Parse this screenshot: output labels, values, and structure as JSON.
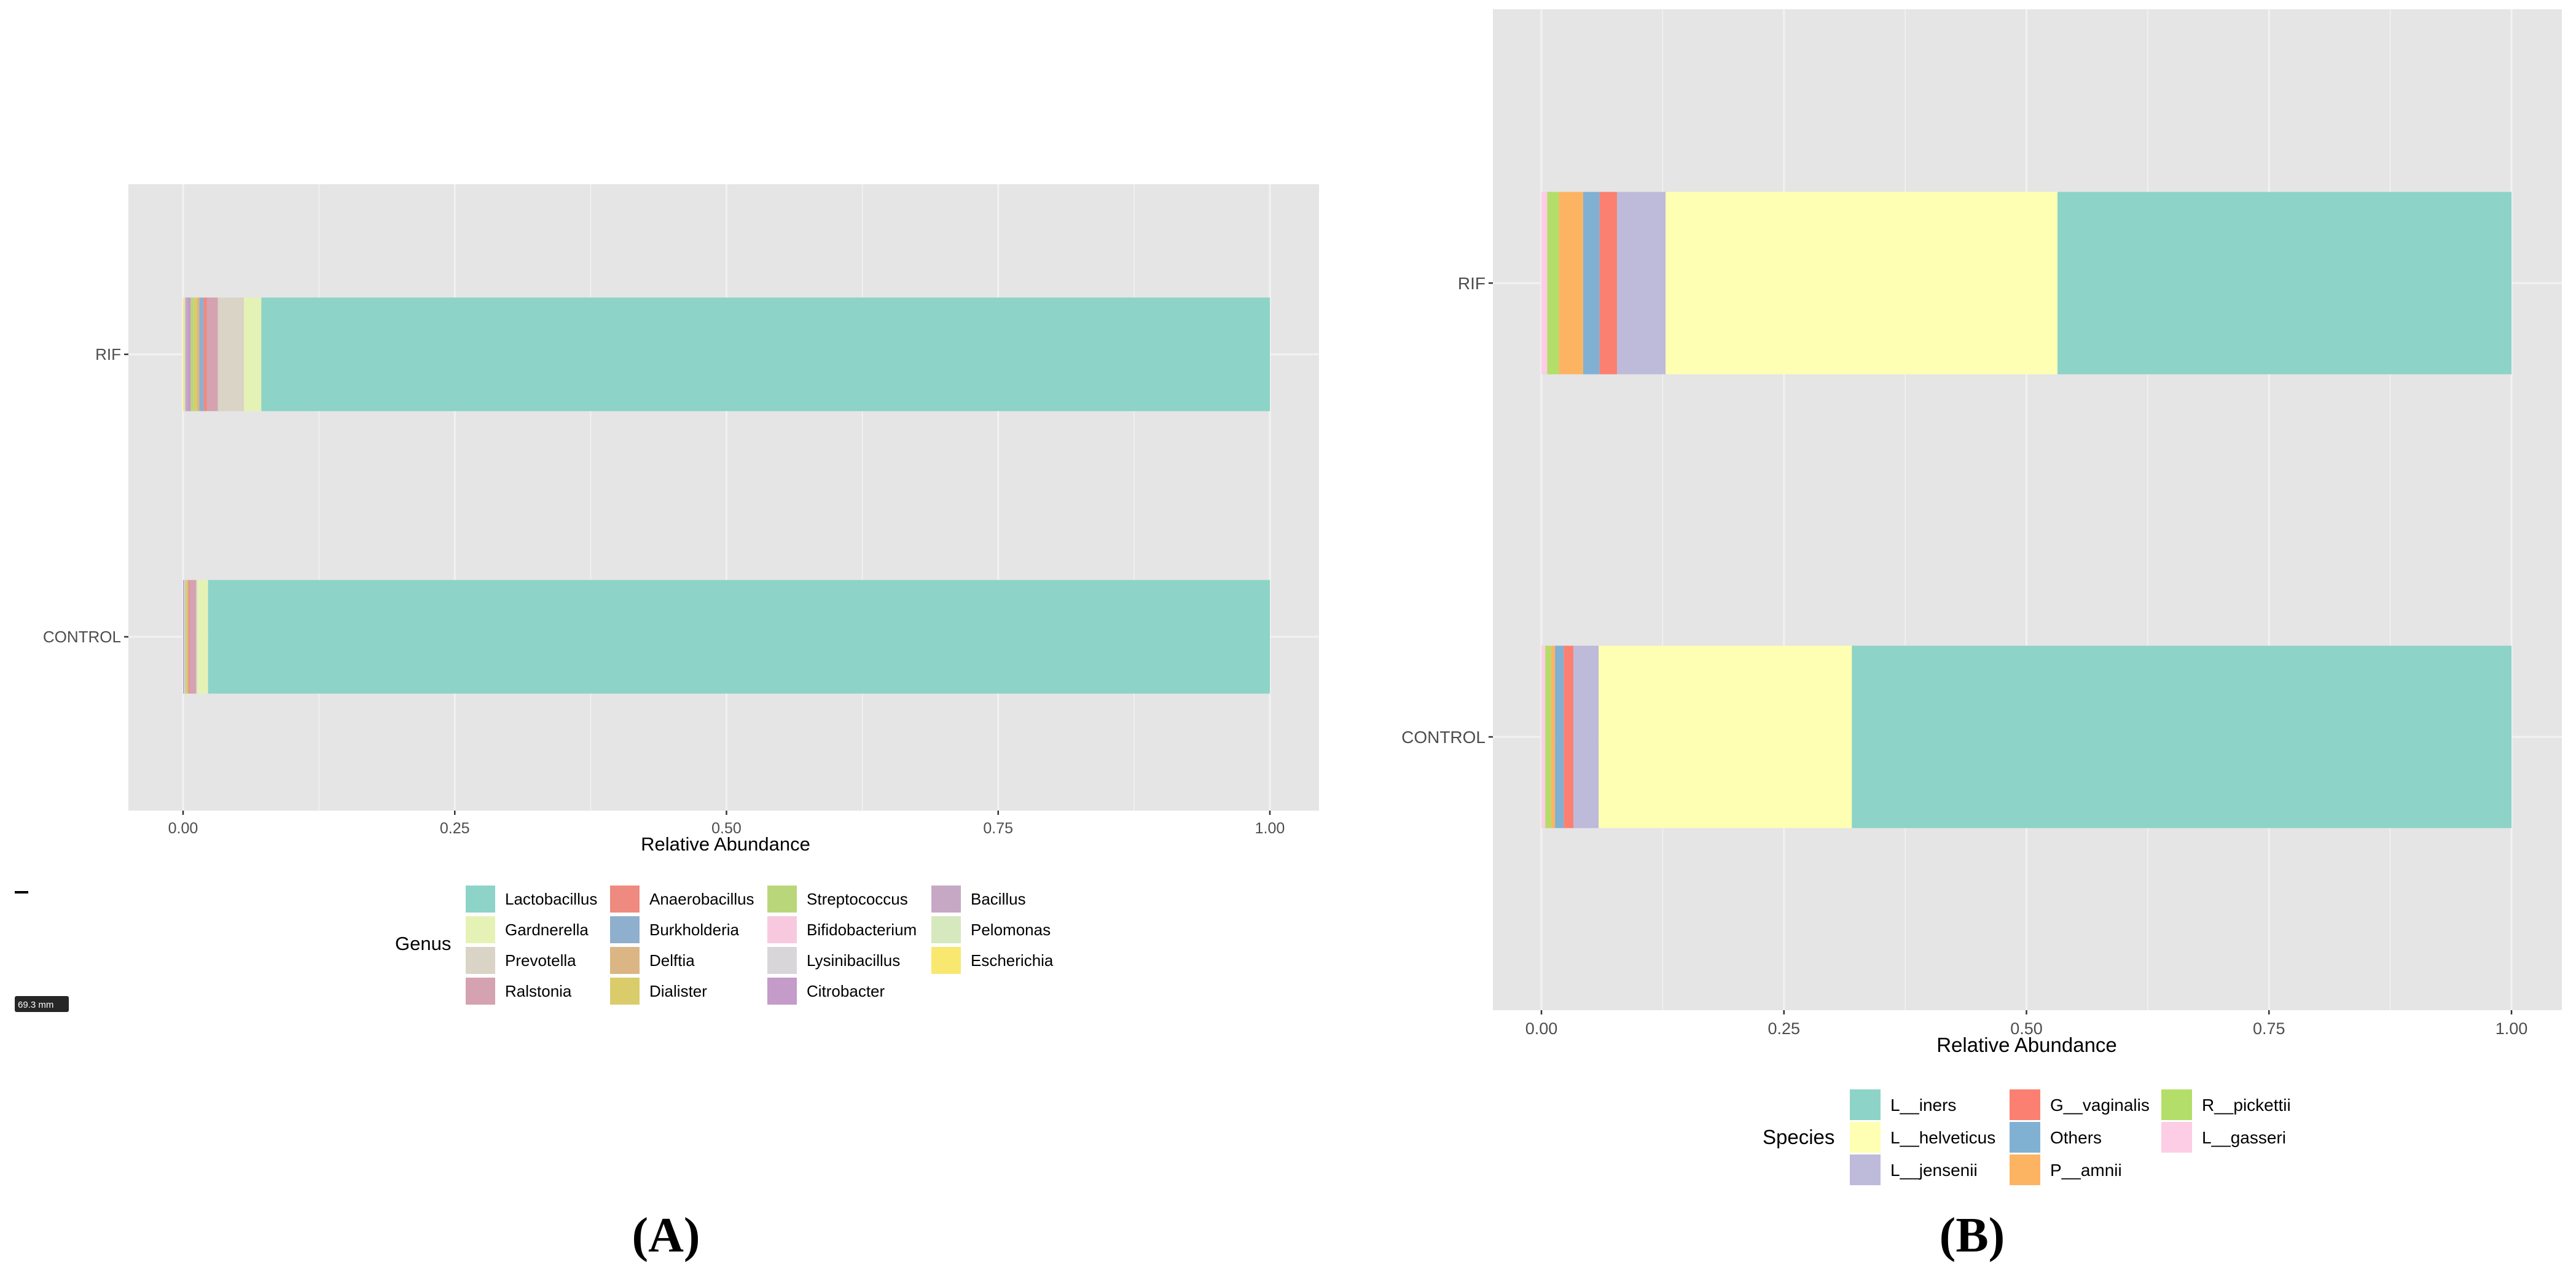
{
  "chart_data": [
    {
      "id": "A",
      "type": "bar",
      "orientation": "horizontal",
      "stacked": true,
      "panel_label": "(A)",
      "xlabel": "Relative Abundance",
      "ylabel": "",
      "xlim": [
        0,
        1
      ],
      "x_ticks": [
        "0.00",
        "0.25",
        "0.50",
        "0.75",
        "1.00"
      ],
      "categories": [
        "RIF",
        "CONTROL"
      ],
      "legend_title": "Genus",
      "legend_position": "bottom",
      "series": [
        {
          "name": "Lactobacillus",
          "color": "#8DD3C7",
          "values": [
            0.928,
            0.977
          ]
        },
        {
          "name": "Gardnerella",
          "color": "#E5F2B5",
          "values": [
            0.016,
            0.01
          ]
        },
        {
          "name": "Prevotella",
          "color": "#D9D4C6",
          "values": [
            0.024,
            0.001
          ]
        },
        {
          "name": "Ralstonia",
          "color": "#D4A2B0",
          "values": [
            0.01,
            0.006
          ]
        },
        {
          "name": "Anaerobacillus",
          "color": "#EE8A80",
          "values": [
            0.003,
            0.001
          ]
        },
        {
          "name": "Burkholderia",
          "color": "#8FAFCF",
          "values": [
            0.004,
            0.0
          ]
        },
        {
          "name": "Delftia",
          "color": "#DCB584",
          "values": [
            0.002,
            0.001
          ]
        },
        {
          "name": "Dialister",
          "color": "#DACC6A",
          "values": [
            0.003,
            0.001
          ]
        },
        {
          "name": "Streptococcus",
          "color": "#B9D77A",
          "values": [
            0.003,
            0.001
          ]
        },
        {
          "name": "Bifidobacterium",
          "color": "#F8C9DE",
          "values": [
            0.0,
            0.0
          ]
        },
        {
          "name": "Lysinibacillus",
          "color": "#D9D6D9",
          "values": [
            0.0,
            0.001
          ]
        },
        {
          "name": "Citrobacter",
          "color": "#C49BC9",
          "values": [
            0.003,
            0.001
          ]
        },
        {
          "name": "Bacillus",
          "color": "#C6A8C4",
          "values": [
            0.002,
            0.0
          ]
        },
        {
          "name": "Pelomonas",
          "color": "#D6E8BE",
          "values": [
            0.001,
            0.0
          ]
        },
        {
          "name": "Escherichia",
          "color": "#F8E86F",
          "values": [
            0.001,
            0.0
          ]
        }
      ]
    },
    {
      "id": "B",
      "type": "bar",
      "orientation": "horizontal",
      "stacked": true,
      "panel_label": "(B)",
      "xlabel": "Relative Abundance",
      "ylabel": "",
      "xlim": [
        0,
        1
      ],
      "x_ticks": [
        "0.00",
        "0.25",
        "0.50",
        "0.75",
        "1.00"
      ],
      "categories": [
        "RIF",
        "CONTROL"
      ],
      "legend_title": "Species",
      "legend_position": "bottom",
      "series": [
        {
          "name": "L__iners",
          "color": "#8DD3C7",
          "values": [
            0.468,
            0.68
          ]
        },
        {
          "name": "L__helveticus",
          "color": "#FFFFB3",
          "values": [
            0.404,
            0.261
          ]
        },
        {
          "name": "L__jensenii",
          "color": "#BEBADA",
          "values": [
            0.05,
            0.026
          ]
        },
        {
          "name": "G__vaginalis",
          "color": "#FB8072",
          "values": [
            0.018,
            0.01
          ]
        },
        {
          "name": "Others",
          "color": "#80B1D3",
          "values": [
            0.017,
            0.009
          ]
        },
        {
          "name": "P__amnii",
          "color": "#FDB462",
          "values": [
            0.025,
            0.004
          ]
        },
        {
          "name": "R__pickettii",
          "color": "#B3DE69",
          "values": [
            0.012,
            0.006
          ]
        },
        {
          "name": "L__gasseri",
          "color": "#FCCDE5",
          "values": [
            0.006,
            0.004
          ]
        }
      ]
    }
  ],
  "scale_badge": "69.3 mm",
  "colors": {
    "panel_background": "#E5E5E5",
    "gridline": "#F2F2F2",
    "tick_text": "#4D4D4D"
  }
}
